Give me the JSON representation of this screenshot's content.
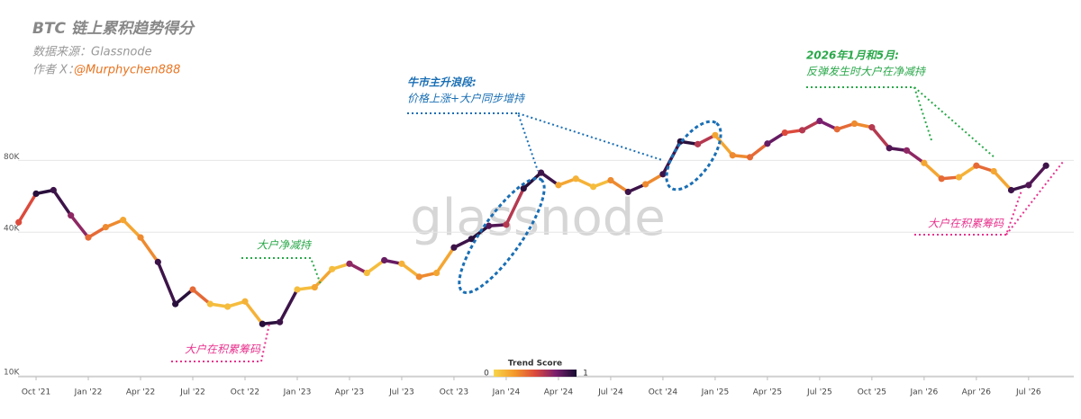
{
  "chart_data": {
    "type": "scatter-line",
    "title": "BTC 链上累积趋势得分",
    "source": "数据来源：Glassnode",
    "author_label": "作者 X：",
    "author_handle": "@Murphychen888",
    "watermark": "glassnode",
    "categories": [
      null,
      "Oct '21",
      null,
      null,
      "Jan '22",
      null,
      null,
      "Apr '22",
      null,
      null,
      "Jul '22",
      null,
      null,
      "Oct '22",
      null,
      null,
      "Jan '23",
      null,
      null,
      "Apr '23",
      null,
      null,
      "Jul '23",
      null,
      null,
      "Oct '23",
      null,
      null,
      "Jan '24",
      null,
      null,
      "Apr '24",
      null,
      null,
      "Jul '24",
      null,
      null,
      "Oct '24",
      null,
      null,
      "Jan '25",
      null,
      null,
      "Apr '25",
      null,
      null,
      "Jul '25",
      null,
      null,
      "Oct '25",
      null,
      null,
      "Jan '26",
      null,
      null,
      "Apr '26",
      null,
      null,
      "Jul '26",
      null
    ],
    "series": [
      {
        "name": "BTC",
        "values": [
          44000,
          58000,
          60000,
          47000,
          38000,
          42000,
          45000,
          38000,
          30000,
          20000,
          23000,
          20000,
          19500,
          20500,
          16500,
          16800,
          23000,
          23500,
          28000,
          29500,
          27000,
          30500,
          29500,
          26000,
          27000,
          34500,
          37500,
          42500,
          43000,
          61000,
          71000,
          63000,
          67000,
          62000,
          66000,
          59000,
          63500,
          70000,
          96000,
          93500,
          102000,
          84000,
          82500,
          94000,
          104500,
          107000,
          117000,
          108000,
          114000,
          110000,
          90000,
          88000,
          78000,
          67000,
          68000,
          76000,
          72000,
          60000,
          63000,
          76000
        ],
        "scores": [
          0.5,
          0.95,
          0.9,
          0.7,
          0.4,
          0.3,
          0.2,
          0.3,
          0.9,
          0.95,
          0.4,
          0.1,
          0.1,
          0.15,
          0.95,
          0.9,
          0.1,
          0.2,
          0.1,
          0.7,
          0.1,
          0.8,
          0.15,
          0.3,
          0.2,
          0.9,
          0.95,
          0.85,
          0.6,
          0.95,
          0.9,
          0.2,
          0.15,
          0.1,
          0.3,
          0.9,
          0.3,
          0.9,
          0.95,
          0.6,
          0.2,
          0.3,
          0.4,
          0.8,
          0.5,
          0.6,
          0.75,
          0.4,
          0.3,
          0.6,
          0.85,
          0.7,
          0.2,
          0.4,
          0.15,
          0.4,
          0.2,
          0.9,
          0.85,
          0.9
        ]
      }
    ],
    "colorscale": [
      "#f7d54a",
      "#f39a2c",
      "#dc4a3c",
      "#7a1f6e",
      "#150c30"
    ],
    "colorbar_title": "Trend Score",
    "colorbar_ticks": [
      0,
      1
    ],
    "log_scale": true,
    "grid": true,
    "ylim": [
      10000,
      300000
    ],
    "yticks": [
      {
        "value": 10000,
        "label": "10K"
      },
      {
        "value": 40000,
        "label": "40K"
      },
      {
        "value": 80000,
        "label": "80K"
      }
    ],
    "annotations": {
      "bull_title": "牛市主升浪段:",
      "bull_text": "价格上涨+大户同步增持",
      "net_reduce": "大户净减持",
      "accumulate_1": "大户在积累筹码",
      "rebound_title": "2026年1月和5月:",
      "rebound_text": "反弹发生时大户在净减持",
      "accumulate_2": "大户在积累筹码"
    }
  }
}
